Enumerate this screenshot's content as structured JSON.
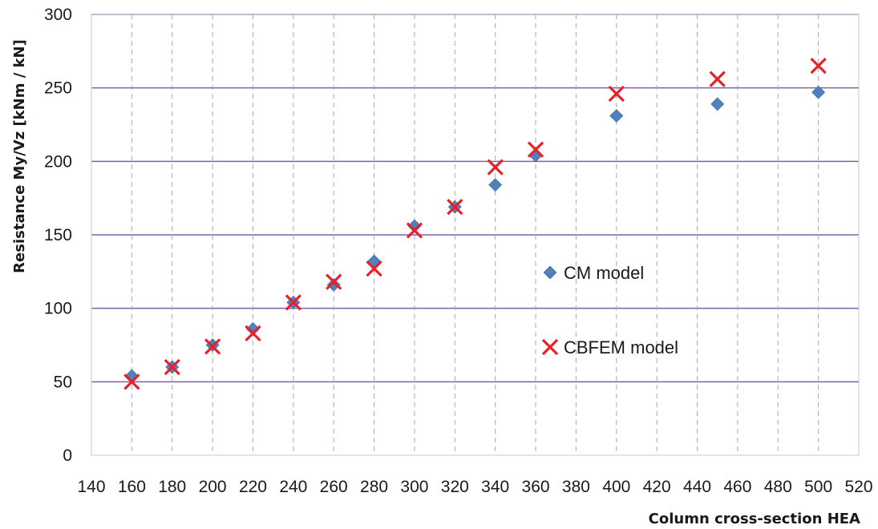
{
  "chart_data": {
    "type": "scatter",
    "title": "",
    "xlabel": "Column cross-section HEA",
    "ylabel": "Resistance My/Vz [kNm / kN]",
    "xlim": [
      140,
      520
    ],
    "ylim": [
      0,
      300
    ],
    "x_ticks": [
      "140",
      "160",
      "180",
      "200",
      "220",
      "240",
      "260",
      "280",
      "300",
      "320",
      "340",
      "360",
      "380",
      "400",
      "420",
      "440",
      "460",
      "480",
      "500",
      "520"
    ],
    "y_ticks": [
      "0",
      "50",
      "100",
      "150",
      "200",
      "250",
      "300"
    ],
    "grid": {
      "horizontal": "solid",
      "vertical": "dashed"
    },
    "legend_position": "center-right",
    "series": [
      {
        "name": "CM model",
        "marker": "diamond",
        "color": "#4f81bd",
        "x": [
          160,
          180,
          200,
          220,
          240,
          260,
          280,
          300,
          320,
          340,
          360,
          400,
          450,
          500
        ],
        "y": [
          54,
          60,
          75,
          86,
          104,
          116,
          132,
          156,
          169,
          184,
          204,
          231,
          239,
          247
        ]
      },
      {
        "name": "CBFEM model",
        "marker": "x",
        "color": "#e8202a",
        "x": [
          160,
          180,
          200,
          220,
          240,
          260,
          280,
          300,
          320,
          340,
          360,
          400,
          450,
          500
        ],
        "y": [
          50,
          60,
          74,
          83,
          104,
          118,
          127,
          153,
          169,
          196,
          208,
          246,
          256,
          265
        ]
      }
    ]
  }
}
